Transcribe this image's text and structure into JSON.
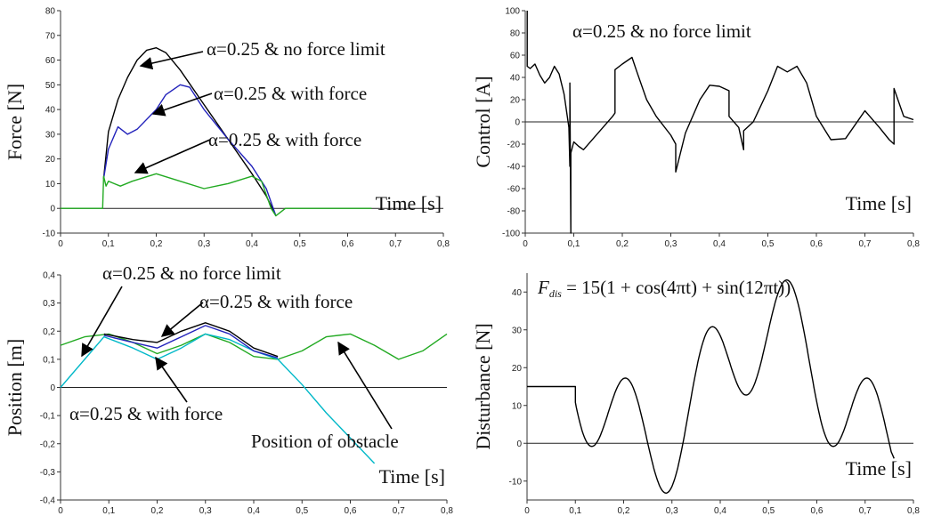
{
  "chart_data": [
    {
      "id": "force",
      "type": "line",
      "ylabel": "Force [N]",
      "xlabel": "Time [s]",
      "xlim": [
        0,
        0.8
      ],
      "ylim": [
        -10,
        80
      ],
      "xticks": [
        "0",
        "0,1",
        "0,2",
        "0,3",
        "0,4",
        "0,5",
        "0,6",
        "0,7",
        "0,8"
      ],
      "yticks": [
        "-10",
        "0",
        "10",
        "20",
        "30",
        "40",
        "50",
        "60",
        "70",
        "80"
      ],
      "annotations": [
        "α=0.25 & no force limit",
        "α=0.25 & with force",
        "α=0.25 & with force"
      ],
      "series": [
        {
          "color": "#000000",
          "x": [
            0.09,
            0.1,
            0.12,
            0.14,
            0.16,
            0.18,
            0.2,
            0.22,
            0.25,
            0.3,
            0.35,
            0.4,
            0.43,
            0.45
          ],
          "y": [
            12,
            31,
            44,
            53,
            60,
            64,
            65,
            63,
            56,
            42,
            28,
            14,
            5,
            -3
          ]
        },
        {
          "color": "#2222bb",
          "x": [
            0.09,
            0.1,
            0.12,
            0.14,
            0.16,
            0.2,
            0.22,
            0.25,
            0.27,
            0.3,
            0.35,
            0.4,
            0.43,
            0.45
          ],
          "y": [
            12,
            24,
            33,
            30,
            32,
            40,
            46,
            50,
            49,
            40,
            28,
            17,
            8,
            -3
          ]
        },
        {
          "color": "#22aa22",
          "x": [
            0,
            0.088,
            0.09,
            0.095,
            0.1,
            0.125,
            0.15,
            0.2,
            0.25,
            0.3,
            0.35,
            0.4,
            0.42,
            0.44,
            0.45,
            0.47,
            0.65
          ],
          "y": [
            0,
            0,
            13,
            9,
            11,
            9,
            11,
            14,
            11,
            8,
            10,
            13,
            11,
            0,
            -3,
            0,
            0
          ]
        }
      ]
    },
    {
      "id": "control",
      "type": "line",
      "ylabel": "Control [A]",
      "xlabel": "Time [s]",
      "xlim": [
        0,
        0.8
      ],
      "ylim": [
        -100,
        100
      ],
      "xticks": [
        "0",
        "0,1",
        "0,2",
        "0,3",
        "0,4",
        "0,5",
        "0,6",
        "0,7",
        "0,8"
      ],
      "yticks": [
        "-100",
        "-80",
        "-60",
        "-40",
        "-20",
        "0",
        "20",
        "40",
        "60",
        "80",
        "100"
      ],
      "annotations": [
        "α=0.25 & no force limit"
      ],
      "series": [
        {
          "color": "#000000",
          "x": [
            0.004,
            0.004,
            0.01,
            0.02,
            0.03,
            0.04,
            0.05,
            0.06,
            0.07,
            0.08,
            0.09,
            0.092,
            0.092,
            0.094,
            0.094,
            0.1,
            0.11,
            0.12,
            0.14,
            0.16,
            0.18,
            0.185,
            0.185,
            0.2,
            0.22,
            0.23,
            0.25,
            0.27,
            0.3,
            0.31,
            0.31,
            0.33,
            0.36,
            0.38,
            0.4,
            0.42,
            0.42,
            0.44,
            0.45,
            0.45,
            0.47,
            0.5,
            0.52,
            0.54,
            0.56,
            0.58,
            0.6,
            0.63,
            0.66,
            0.7,
            0.73,
            0.75,
            0.76,
            0.76,
            0.78,
            0.8
          ],
          "y": [
            100,
            50,
            48,
            52,
            42,
            35,
            40,
            50,
            43,
            25,
            -5,
            -40,
            35,
            -100,
            -28,
            -18,
            -22,
            -25,
            -15,
            -5,
            5,
            8,
            47,
            52,
            58,
            45,
            20,
            5,
            -12,
            -20,
            -45,
            -10,
            20,
            33,
            32,
            28,
            5,
            -5,
            -25,
            -8,
            0,
            28,
            50,
            45,
            50,
            35,
            5,
            -16,
            -15,
            10,
            -5,
            -16,
            -20,
            30,
            5,
            2
          ]
        }
      ]
    },
    {
      "id": "position",
      "type": "line",
      "ylabel": "Position [m]",
      "xlabel": "Time [s]",
      "xlim": [
        0,
        0.8
      ],
      "ylim": [
        -0.4,
        0.4
      ],
      "xticks": [
        "0",
        "0,1",
        "0,2",
        "0,3",
        "0,4",
        "0,5",
        "0,6",
        "0,7",
        "0,8"
      ],
      "yticks": [
        "-0,4",
        "-0,3",
        "-0,2",
        "-0,1",
        "0",
        "0,1",
        "0,2",
        "0,3",
        "0,4"
      ],
      "annotations": [
        "α=0.25 & no force limit",
        "α=0.25 & with force",
        "α=0.25 & with force",
        "Position of obstacle"
      ],
      "series": [
        {
          "color": "#22aa22",
          "x": [
            0,
            0.05,
            0.1,
            0.15,
            0.2,
            0.25,
            0.3,
            0.35,
            0.4,
            0.45,
            0.5,
            0.55,
            0.6,
            0.65,
            0.7,
            0.75,
            0.8
          ],
          "y": [
            0.15,
            0.18,
            0.19,
            0.16,
            0.12,
            0.15,
            0.19,
            0.16,
            0.11,
            0.1,
            0.13,
            0.18,
            0.19,
            0.15,
            0.1,
            0.13,
            0.19
          ]
        },
        {
          "color": "#00b8c8",
          "x": [
            0,
            0.09,
            0.15,
            0.2,
            0.25,
            0.3,
            0.35,
            0.4,
            0.45,
            0.5,
            0.55,
            0.6,
            0.65
          ],
          "y": [
            0,
            0.18,
            0.14,
            0.1,
            0.14,
            0.19,
            0.17,
            0.13,
            0.1,
            0.01,
            -0.09,
            -0.18,
            -0.27
          ]
        },
        {
          "color": "#000000",
          "x": [
            0.09,
            0.15,
            0.2,
            0.25,
            0.3,
            0.35,
            0.4,
            0.45
          ],
          "y": [
            0.19,
            0.17,
            0.16,
            0.2,
            0.23,
            0.2,
            0.14,
            0.11
          ]
        },
        {
          "color": "#2222bb",
          "x": [
            0.09,
            0.15,
            0.2,
            0.25,
            0.3,
            0.35,
            0.4,
            0.45
          ],
          "y": [
            0.185,
            0.16,
            0.14,
            0.18,
            0.22,
            0.19,
            0.13,
            0.105
          ]
        }
      ]
    },
    {
      "id": "disturbance",
      "type": "line",
      "ylabel": "Disturbance [N]",
      "xlabel": "Time [s]",
      "xlim": [
        0,
        0.8
      ],
      "ylim": [
        -15,
        45
      ],
      "xticks": [
        "0",
        "0,1",
        "0,2",
        "0,3",
        "0,4",
        "0,5",
        "0,6",
        "0,7",
        "0,8"
      ],
      "yticks": [
        "-10",
        "0",
        "10",
        "20",
        "30",
        "40"
      ],
      "formula": {
        "lhs": "F",
        "sub": "dis",
        "rhs": " = 15(1 + cos(4πt) + sin(12πt))"
      },
      "series": [
        {
          "color": "#000000",
          "formula": "15(1+cos(4πt)+sin(12πt)) for t>=0.1; 15 before",
          "xmin": 0.1,
          "xmax": 0.755,
          "hold": 15
        }
      ]
    }
  ]
}
